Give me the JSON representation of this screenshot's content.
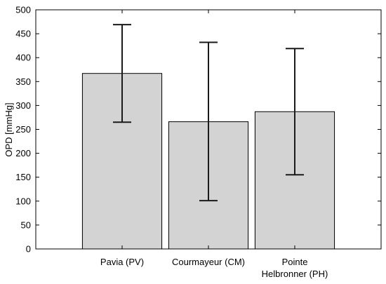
{
  "chart_data": {
    "type": "bar",
    "ylabel": "OPD [mmHg]",
    "ylim": [
      0,
      500
    ],
    "yticks": [
      0,
      50,
      100,
      150,
      200,
      250,
      300,
      350,
      400,
      450,
      500
    ],
    "categories": [
      {
        "lines": [
          "Pavia (PV)"
        ]
      },
      {
        "lines": [
          "Courmayeur (CM)"
        ]
      },
      {
        "lines": [
          "Pointe",
          "Helbronner (PH)"
        ]
      }
    ],
    "values": [
      367,
      266,
      287
    ],
    "error_low": [
      265,
      101,
      155
    ],
    "error_high": [
      469,
      432,
      419
    ],
    "bar_color": "#d3d3d3",
    "grid": false
  }
}
